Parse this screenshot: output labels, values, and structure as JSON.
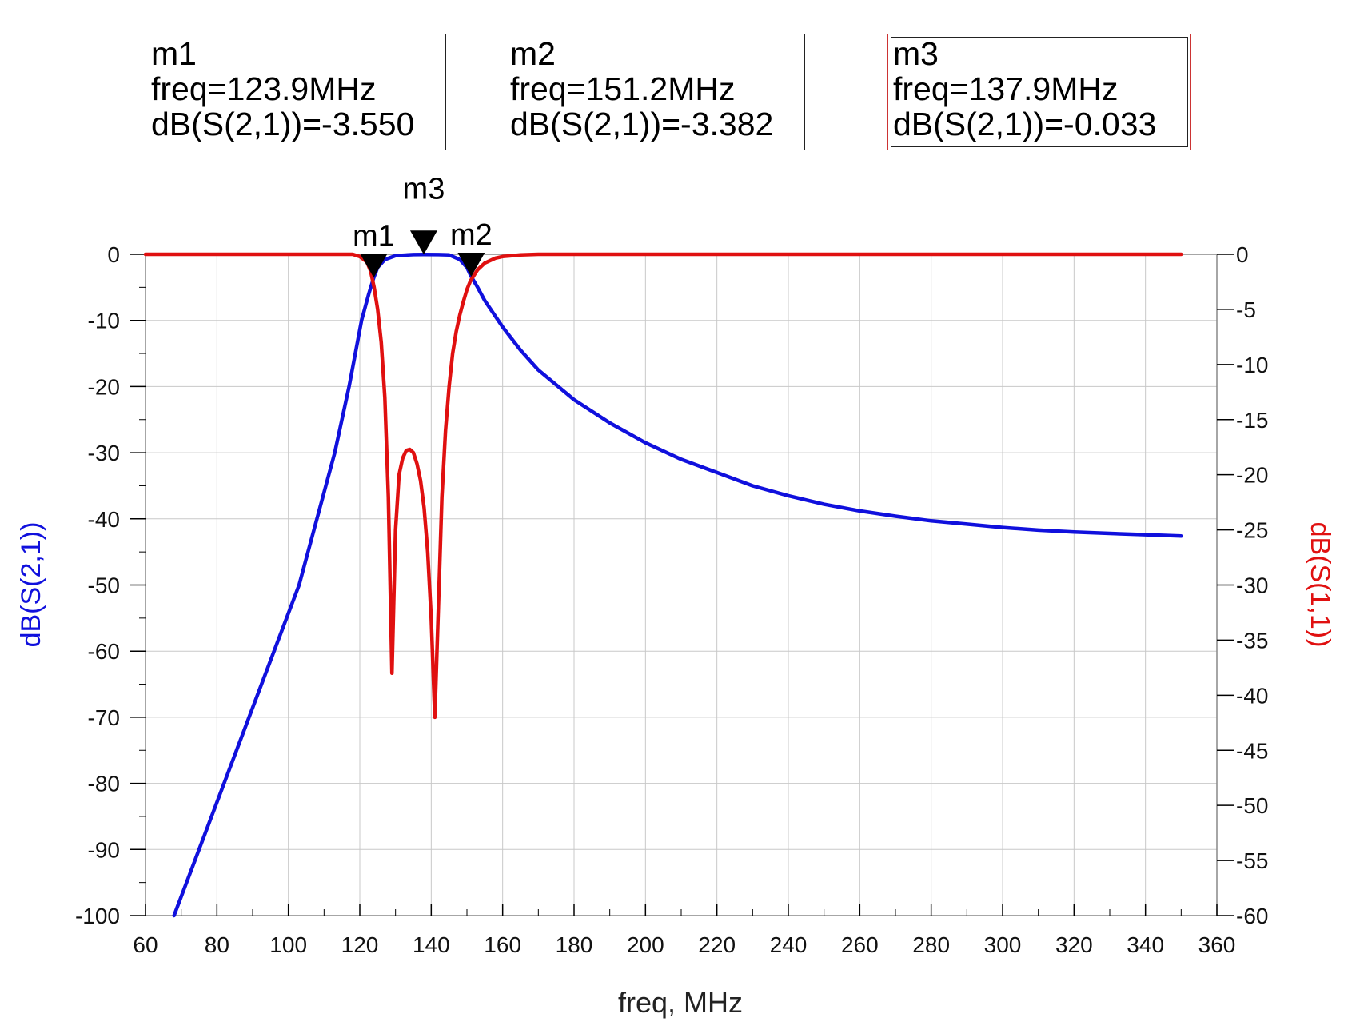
{
  "markers": [
    {
      "name": "m1",
      "freq_text": "freq=123.9MHz",
      "value_text": "dB(S(2,1))=-3.550",
      "freq": 123.9,
      "value": -3.55,
      "selected": false
    },
    {
      "name": "m2",
      "freq_text": "freq=151.2MHz",
      "value_text": "dB(S(2,1))=-3.382",
      "freq": 151.2,
      "value": -3.382,
      "selected": false
    },
    {
      "name": "m3",
      "freq_text": "freq=137.9MHz",
      "value_text": "dB(S(2,1))=-0.033",
      "freq": 137.9,
      "value": -0.033,
      "selected": true
    }
  ],
  "chart_data": {
    "type": "line",
    "xlabel": "freq, MHz",
    "ylabel_left": "dB(S(2,1))",
    "ylabel_right": "dB(S(1,1))",
    "xlim": [
      60,
      360
    ],
    "ylim_left": [
      -100,
      0
    ],
    "ylim_right": [
      -60,
      0
    ],
    "x_ticks": [
      60,
      80,
      100,
      120,
      140,
      160,
      180,
      200,
      220,
      240,
      260,
      280,
      300,
      320,
      340,
      360
    ],
    "y_left_ticks": [
      0,
      -10,
      -20,
      -30,
      -40,
      -50,
      -60,
      -70,
      -80,
      -90,
      -100
    ],
    "y_right_ticks": [
      0,
      -5,
      -10,
      -15,
      -20,
      -25,
      -30,
      -35,
      -40,
      -45,
      -50,
      -55,
      -60
    ],
    "grid": true,
    "colors": {
      "s21": "#1010dd",
      "s11": "#e01010",
      "axis": "#000000",
      "grid": "#c8c8c8"
    },
    "series": [
      {
        "name": "dB(S(2,1))",
        "axis": "left",
        "points": [
          [
            68,
            -100
          ],
          [
            75,
            -90
          ],
          [
            82,
            -80
          ],
          [
            89,
            -70
          ],
          [
            96,
            -60
          ],
          [
            103,
            -50
          ],
          [
            108,
            -40
          ],
          [
            113,
            -30
          ],
          [
            117,
            -20
          ],
          [
            120.5,
            -10
          ],
          [
            122.5,
            -6
          ],
          [
            123.9,
            -3.55
          ],
          [
            125,
            -2
          ],
          [
            127,
            -0.8
          ],
          [
            130,
            -0.2
          ],
          [
            135,
            -0.05
          ],
          [
            137.9,
            -0.033
          ],
          [
            142,
            -0.05
          ],
          [
            145,
            -0.1
          ],
          [
            148,
            -0.8
          ],
          [
            150,
            -2
          ],
          [
            151.2,
            -3.382
          ],
          [
            153,
            -5
          ],
          [
            155,
            -7
          ],
          [
            160,
            -11
          ],
          [
            165,
            -14.5
          ],
          [
            170,
            -17.5
          ],
          [
            180,
            -22
          ],
          [
            190,
            -25.5
          ],
          [
            200,
            -28.5
          ],
          [
            210,
            -31
          ],
          [
            220,
            -33
          ],
          [
            230,
            -35
          ],
          [
            240,
            -36.5
          ],
          [
            250,
            -37.8
          ],
          [
            260,
            -38.8
          ],
          [
            270,
            -39.6
          ],
          [
            280,
            -40.3
          ],
          [
            290,
            -40.8
          ],
          [
            300,
            -41.3
          ],
          [
            310,
            -41.7
          ],
          [
            320,
            -42
          ],
          [
            330,
            -42.2
          ],
          [
            340,
            -42.4
          ],
          [
            350,
            -42.6
          ]
        ]
      },
      {
        "name": "dB(S(1,1))",
        "axis": "right",
        "points": [
          [
            60,
            0
          ],
          [
            118,
            0
          ],
          [
            120,
            -0.2
          ],
          [
            122,
            -0.7
          ],
          [
            123,
            -1.5
          ],
          [
            124,
            -3
          ],
          [
            125,
            -5
          ],
          [
            126,
            -8
          ],
          [
            127,
            -13
          ],
          [
            128,
            -22
          ],
          [
            129,
            -38
          ],
          [
            130,
            -25
          ],
          [
            131,
            -20
          ],
          [
            132,
            -18.5
          ],
          [
            133,
            -17.8
          ],
          [
            134,
            -17.7
          ],
          [
            135,
            -18
          ],
          [
            136,
            -19
          ],
          [
            137,
            -20.5
          ],
          [
            138,
            -23
          ],
          [
            139,
            -27
          ],
          [
            140,
            -33
          ],
          [
            141,
            -42
          ],
          [
            142,
            -32
          ],
          [
            143,
            -22
          ],
          [
            144,
            -16
          ],
          [
            145,
            -12
          ],
          [
            146,
            -9
          ],
          [
            147,
            -7
          ],
          [
            148,
            -5.5
          ],
          [
            149,
            -4.3
          ],
          [
            150,
            -3.2
          ],
          [
            151,
            -2.4
          ],
          [
            153,
            -1.4
          ],
          [
            155,
            -0.8
          ],
          [
            158,
            -0.35
          ],
          [
            160,
            -0.2
          ],
          [
            165,
            -0.05
          ],
          [
            170,
            0
          ],
          [
            350,
            0
          ]
        ]
      }
    ]
  }
}
